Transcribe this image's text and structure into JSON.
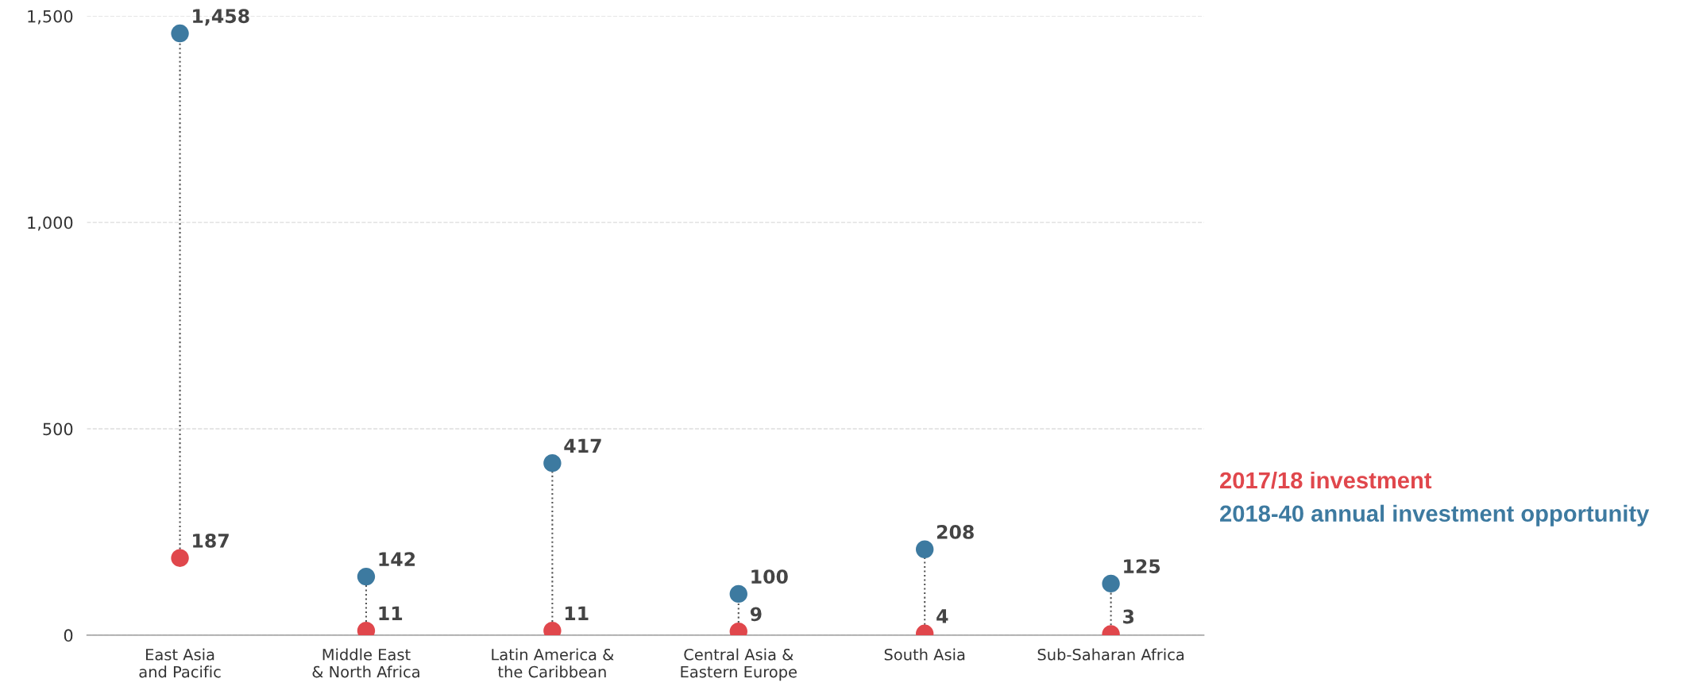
{
  "chart_data": {
    "type": "scatter",
    "categories": [
      "East Asia\nand Pacific",
      "Middle East\n& North Africa",
      "Latin America &\nthe Caribbean",
      "Central Asia &\nEastern Europe",
      "South Asia",
      "Sub-Saharan Africa"
    ],
    "series": [
      {
        "name": "2017/18 investment",
        "color": "#e0474c",
        "values": [
          187,
          11,
          11,
          9,
          4,
          3
        ],
        "value_labels": [
          "187",
          "11",
          "11",
          "9",
          "4",
          "3"
        ]
      },
      {
        "name": "2018-40 annual investment opportunity",
        "color": "#3d7aa0",
        "values": [
          1458,
          142,
          417,
          100,
          208,
          125
        ],
        "value_labels": [
          "1,458",
          "142",
          "417",
          "100",
          "208",
          "125"
        ]
      }
    ],
    "ylim": [
      0,
      1500
    ],
    "yticks": [
      0,
      {
        "value": 500,
        "label": "500"
      },
      {
        "value": 1000,
        "label": "1,000"
      },
      {
        "value": 1500,
        "label": "1,500"
      }
    ],
    "grid": "y",
    "legend": "right",
    "marker": "circle",
    "line_style": "dotted"
  }
}
